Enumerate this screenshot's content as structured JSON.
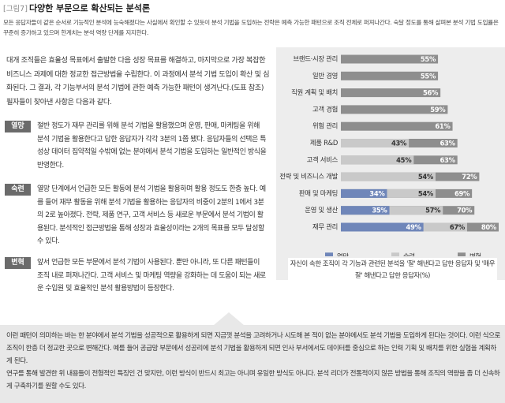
{
  "header": {
    "figure_label": "[그림7]",
    "title": "다양한 부문으로 확산되는 분석론",
    "intro": "모든 응답자들이 같은 순서로 기능적인 분석에 능숙해졌다는 사실에서 확인할 수 있듯이 분석 기법을 도입하는 전략은 예측 가능한 패턴으로 조직 전체로 퍼져나간다. 숙달 정도를 통해 살펴본 분석 기법 도입률은 꾸준히 증가하고 있으며 한계치는 분석 역량 단계를 지지한다."
  },
  "body": {
    "lead": "대개 조직들은 효율성 목표에서 출발한 다음 성장 목표를 해결하고, 마지막으로 가장 복잡한 비즈니스 과제에 대한 정교한 접근방법을 수립한다. 이 과정에서 분석 기법 도입이 확산 및 심화된다. 그 결과, 각 기능부서의 분석 기법에 관한 예측 가능한 패턴이 생겨난다.(도표 참조) 필자들이 찾아낸 사항은 다음과 같다.",
    "sections": [
      {
        "label": "열망",
        "text": "절반 정도가 재무 관리를 위해 분석 기법을 활용했으며 운영, 판매, 마케팅을 위해 분석 기법을 활용한다고 답한 응답자가 각각 3분의 1쯤 됐다. 응답자들의 선택은 특성상 데이터 집약적일 수밖에 없는 분야에서 분석 기법을 도입하는 일반적인 방식을 반영한다."
      },
      {
        "label": "숙련",
        "text": "열망 단계에서 언급한 모든 활동에 분석 기법을 활용하며 활용 정도도 한층 높다. 예를 들어 재무 활동을 위해 분석 기법을 활용하는 응답자의 비중이 2분의 1에서 3분의 2로 높아졌다. 전략, 제품 연구, 고객 서비스 등 새로운 부문에서 분석 기법이 활용된다. 분석적인 접근방법을 통해 성장과 효율성이라는 2개의 목표를 모두 달성할 수 있다."
      },
      {
        "label": "변혁",
        "text": "앞서 언급한 모든 부문에서 분석 기법이 사용된다. 뿐만 아니라, 또 다른 패턴들이 조직 내로 퍼져나간다. 고객 서비스 및 마케팅 역량을 강화하는 데 도움이 되는 새로운 수입원 및 효율적인 분석 활용방법이 등장한다."
      }
    ]
  },
  "chart_data": {
    "type": "bar",
    "orientation": "horizontal",
    "categories": [
      "브랜드·시장 관리",
      "일반 경영",
      "직원 계획 및 배치",
      "고객 경험",
      "위험 관리",
      "제품 R&D",
      "고객 서비스",
      "전략 및 비즈니스 개발",
      "판매 및 마케팅",
      "운영 및 생산",
      "재무 관리"
    ],
    "series": [
      {
        "name": "열망",
        "color": "#6f86b9",
        "values": [
          null,
          null,
          null,
          null,
          null,
          null,
          null,
          null,
          34,
          35,
          49
        ],
        "value_labels": [
          null,
          null,
          null,
          null,
          null,
          null,
          null,
          null,
          "34%",
          "35%",
          "49%"
        ]
      },
      {
        "name": "숙련",
        "color": "#c9c9c9",
        "values": [
          null,
          null,
          null,
          null,
          null,
          43,
          45,
          54,
          54,
          57,
          67
        ],
        "value_labels": [
          null,
          null,
          null,
          null,
          null,
          "43%",
          "45%",
          "54%",
          "54%",
          "57%",
          "67%"
        ]
      },
      {
        "name": "변혁",
        "color": "#8e8e8e",
        "values": [
          55,
          55,
          56,
          59,
          61,
          63,
          63,
          72,
          69,
          70,
          80
        ],
        "value_labels": [
          "55%",
          "55%",
          "56%",
          "59%",
          "61%",
          "63%",
          "63%",
          "72%",
          "69%",
          "70%",
          "80%"
        ]
      }
    ],
    "xlim": [
      15,
      80
    ],
    "caption": "자신이 속한 조직이 각 기능과 관련된 분석을 '잘' 해낸다고 답한 응답자 및 '매우 잘' 해낸다고 답한 응답자(%)"
  },
  "footer": {
    "paragraphs": [
      "이런 패턴이 의미하는 바는 한 분야에서 분석 기법을 성공적으로 활용하게 되면 지금껏 분석을 고려하거나 시도해 본 적이 없는 분야에서도 분석 기법을 도입하게 된다는 것이다. 이런 식으로 조직이 한층 더 정교한 곳으로 변해간다. 예를 들어 공급망 부문에서 성공리에 분석 기법을 활용하게 되면 인사 부서에서도 데이터를 중심으로 하는 인력 기획 및 배치를 위한 실험을 계획하게 된다.",
      "연구를 통해 발견한 위 내용들이 전형적인 특징인 건 맞지만, 이런 방식이 반드시 최고는 아니며 유일한 방식도 아니다. 분석 리더가 전통적이지 않은 방법을 통해 조직의 역량을 좀 더 신속하게 구축하기를 원할 수도 있다."
    ]
  }
}
